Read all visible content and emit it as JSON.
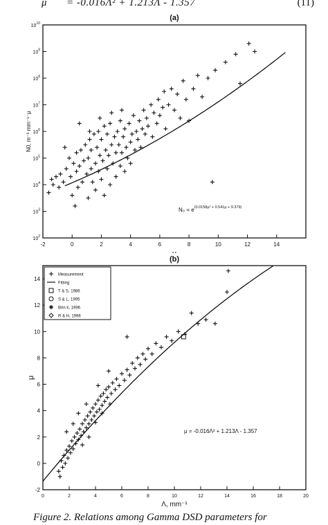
{
  "header_equation": {
    "lhs": "μ",
    "rhs": "= -0.016Λ² + 1.213Λ - 1.357",
    "number": "(11)"
  },
  "caption": "Figure 2. Relations among Gamma DSD parameters for",
  "chart_data": [
    {
      "type": "scatter",
      "title": "(a)",
      "xlabel": "μ",
      "ylabel": "N0, m⁻³ mm⁻¹⁻μ",
      "xlim": [
        -2,
        16
      ],
      "ylim_log10": [
        2,
        10
      ],
      "y_scale": "log",
      "x_ticks": [
        -2,
        0,
        2,
        4,
        6,
        8,
        10,
        12,
        14
      ],
      "y_ticks_log10": [
        2,
        3,
        4,
        5,
        6,
        7,
        8,
        9,
        10
      ],
      "tick_prefix": "10",
      "annotation": {
        "base": "N₀ = e",
        "exponent": "(0.0158μ² + 0.541μ + 9.379)"
      },
      "fit_curve": {
        "name": "fit",
        "formula": "log10(N0) = (0.0158μ² + 0.541μ + 9.379)/ln10"
      },
      "series": [
        {
          "marker": "+",
          "points": [
            [
              -1.6,
              3.7
            ],
            [
              -1.4,
              4.2
            ],
            [
              -1.3,
              4.0
            ],
            [
              -1.1,
              4.3
            ],
            [
              -0.9,
              3.9
            ],
            [
              -0.8,
              4.4
            ],
            [
              -0.6,
              4.1
            ],
            [
              -0.4,
              4.6
            ],
            [
              -0.2,
              5.0
            ],
            [
              -0.1,
              4.3
            ],
            [
              0.0,
              3.6
            ],
            [
              0.1,
              4.8
            ],
            [
              0.2,
              3.2
            ],
            [
              0.3,
              4.5
            ],
            [
              0.3,
              5.2
            ],
            [
              0.4,
              3.9
            ],
            [
              0.5,
              4.7
            ],
            [
              0.6,
              5.3
            ],
            [
              0.7,
              4.1
            ],
            [
              0.8,
              4.9
            ],
            [
              0.9,
              5.5
            ],
            [
              1.0,
              4.4
            ],
            [
              1.1,
              3.5
            ],
            [
              1.1,
              5.0
            ],
            [
              1.2,
              5.7
            ],
            [
              1.3,
              4.6
            ],
            [
              1.3,
              5.3
            ],
            [
              1.4,
              4.1
            ],
            [
              1.5,
              5.9
            ],
            [
              1.6,
              4.8
            ],
            [
              1.6,
              3.8
            ],
            [
              1.7,
              5.4
            ],
            [
              1.8,
              4.5
            ],
            [
              1.8,
              6.0
            ],
            [
              1.9,
              5.1
            ],
            [
              2.0,
              4.2
            ],
            [
              2.0,
              5.7
            ],
            [
              2.1,
              4.9
            ],
            [
              2.2,
              6.2
            ],
            [
              2.2,
              3.6
            ],
            [
              2.3,
              5.3
            ],
            [
              2.4,
              4.6
            ],
            [
              2.4,
              5.9
            ],
            [
              2.5,
              5.1
            ],
            [
              2.6,
              4.0
            ],
            [
              2.6,
              6.3
            ],
            [
              2.7,
              5.5
            ],
            [
              2.8,
              4.8
            ],
            [
              2.9,
              5.8
            ],
            [
              3.0,
              5.2
            ],
            [
              3.0,
              4.3
            ],
            [
              3.1,
              6.0
            ],
            [
              3.2,
              5.5
            ],
            [
              3.3,
              4.7
            ],
            [
              3.3,
              6.4
            ],
            [
              3.4,
              5.2
            ],
            [
              3.5,
              5.8
            ],
            [
              3.6,
              4.5
            ],
            [
              3.6,
              6.1
            ],
            [
              3.7,
              5.4
            ],
            [
              3.8,
              5.0
            ],
            [
              3.9,
              6.3
            ],
            [
              4.0,
              5.6
            ],
            [
              4.0,
              4.8
            ],
            [
              4.1,
              5.9
            ],
            [
              4.2,
              6.6
            ],
            [
              4.3,
              5.3
            ],
            [
              4.4,
              6.0
            ],
            [
              4.5,
              5.7
            ],
            [
              4.6,
              6.4
            ],
            [
              4.7,
              5.4
            ],
            [
              4.8,
              6.1
            ],
            [
              4.9,
              6.8
            ],
            [
              5.0,
              5.9
            ],
            [
              5.1,
              6.5
            ],
            [
              5.2,
              6.2
            ],
            [
              5.4,
              7.0
            ],
            [
              5.5,
              5.8
            ],
            [
              5.6,
              6.7
            ],
            [
              5.8,
              6.3
            ],
            [
              5.9,
              7.2
            ],
            [
              6.0,
              6.6
            ],
            [
              6.2,
              6.9
            ],
            [
              6.3,
              7.5
            ],
            [
              6.4,
              6.1
            ],
            [
              6.6,
              7.0
            ],
            [
              6.8,
              7.6
            ],
            [
              7.0,
              6.8
            ],
            [
              7.2,
              7.4
            ],
            [
              7.4,
              6.5
            ],
            [
              7.6,
              7.9
            ],
            [
              7.8,
              7.2
            ],
            [
              8.0,
              6.4
            ],
            [
              8.3,
              7.6
            ],
            [
              8.6,
              8.1
            ],
            [
              8.9,
              7.3
            ],
            [
              9.3,
              8.0
            ],
            [
              9.6,
              4.1
            ],
            [
              9.8,
              8.3
            ],
            [
              10.5,
              8.6
            ],
            [
              11.2,
              8.9
            ],
            [
              11.5,
              7.8
            ],
            [
              12.1,
              9.3
            ],
            [
              12.5,
              9.0
            ],
            [
              0.5,
              6.3
            ],
            [
              1.2,
              6.0
            ],
            [
              2.7,
              6.7
            ],
            [
              3.4,
              6.8
            ],
            [
              -0.5,
              5.4
            ],
            [
              1.9,
              6.5
            ]
          ]
        }
      ]
    },
    {
      "type": "scatter",
      "title": "(b)",
      "xlabel": "Λ, mm⁻¹",
      "ylabel": "μ",
      "xlim": [
        0,
        20
      ],
      "ylim": [
        -2,
        15
      ],
      "x_ticks": [
        0,
        2,
        4,
        6,
        8,
        10,
        12,
        14,
        16,
        18,
        20
      ],
      "y_ticks": [
        -2,
        0,
        2,
        4,
        6,
        8,
        10,
        12,
        14
      ],
      "annotation": "μ = -0.016Λ² + 1.213Λ - 1.357",
      "legend_position": "top-left",
      "legend": [
        "Measurement",
        "Fitting",
        "T & S, 1986",
        "S & L, 1995",
        "Brin k, 1996",
        "R & H, 1996"
      ],
      "fit_curve": {
        "name": "Fitting",
        "coefficients": [
          -0.016,
          1.213,
          -1.357
        ]
      },
      "series": [
        {
          "name": "Measurement",
          "marker": "+",
          "points": [
            [
              1.2,
              -0.6
            ],
            [
              1.3,
              -1.0
            ],
            [
              1.4,
              0.2
            ],
            [
              1.5,
              -0.3
            ],
            [
              1.6,
              0.6
            ],
            [
              1.7,
              0.0
            ],
            [
              1.8,
              1.0
            ],
            [
              1.9,
              0.4
            ],
            [
              2.0,
              1.3
            ],
            [
              2.1,
              0.8
            ],
            [
              2.2,
              1.7
            ],
            [
              2.3,
              1.1
            ],
            [
              2.4,
              2.0
            ],
            [
              2.5,
              1.5
            ],
            [
              2.6,
              2.3
            ],
            [
              2.7,
              1.8
            ],
            [
              2.8,
              2.6
            ],
            [
              2.9,
              2.1
            ],
            [
              3.0,
              3.0
            ],
            [
              3.1,
              2.4
            ],
            [
              3.2,
              3.3
            ],
            [
              3.3,
              2.7
            ],
            [
              3.4,
              3.6
            ],
            [
              3.5,
              3.0
            ],
            [
              3.6,
              3.9
            ],
            [
              3.7,
              3.3
            ],
            [
              3.8,
              4.2
            ],
            [
              3.9,
              3.6
            ],
            [
              4.0,
              4.5
            ],
            [
              4.1,
              3.9
            ],
            [
              4.2,
              4.8
            ],
            [
              4.3,
              4.1
            ],
            [
              4.4,
              5.1
            ],
            [
              4.5,
              4.4
            ],
            [
              4.6,
              5.3
            ],
            [
              4.7,
              4.7
            ],
            [
              4.8,
              5.6
            ],
            [
              4.9,
              5.0
            ],
            [
              5.0,
              5.8
            ],
            [
              5.2,
              5.3
            ],
            [
              5.3,
              6.1
            ],
            [
              5.5,
              5.6
            ],
            [
              5.6,
              6.4
            ],
            [
              5.8,
              5.9
            ],
            [
              6.0,
              6.8
            ],
            [
              6.2,
              6.3
            ],
            [
              6.4,
              7.1
            ],
            [
              6.6,
              6.7
            ],
            [
              6.8,
              7.6
            ],
            [
              7.0,
              7.2
            ],
            [
              7.2,
              8.0
            ],
            [
              7.4,
              7.5
            ],
            [
              7.6,
              8.3
            ],
            [
              7.8,
              7.9
            ],
            [
              8.0,
              8.7
            ],
            [
              8.3,
              8.3
            ],
            [
              8.6,
              9.1
            ],
            [
              9.0,
              8.8
            ],
            [
              9.4,
              9.6
            ],
            [
              9.8,
              9.3
            ],
            [
              10.3,
              10.0
            ],
            [
              10.8,
              9.8
            ],
            [
              11.3,
              11.4
            ],
            [
              11.8,
              10.6
            ],
            [
              12.4,
              10.9
            ],
            [
              13.1,
              10.6
            ],
            [
              14.1,
              14.6
            ],
            [
              14.0,
              13.0
            ],
            [
              6.4,
              9.6
            ],
            [
              2.7,
              3.8
            ],
            [
              3.0,
              1.4
            ],
            [
              3.5,
              2.0
            ],
            [
              4.0,
              3.1
            ],
            [
              4.5,
              3.8
            ],
            [
              5.1,
              4.5
            ],
            [
              1.8,
              2.4
            ],
            [
              2.3,
              3.0
            ],
            [
              3.3,
              4.5
            ],
            [
              4.2,
              5.9
            ],
            [
              5.0,
              7.0
            ]
          ]
        },
        {
          "name": "T & S, 1986",
          "marker": "square",
          "points": [
            [
              10.7,
              9.6
            ]
          ]
        }
      ]
    }
  ]
}
